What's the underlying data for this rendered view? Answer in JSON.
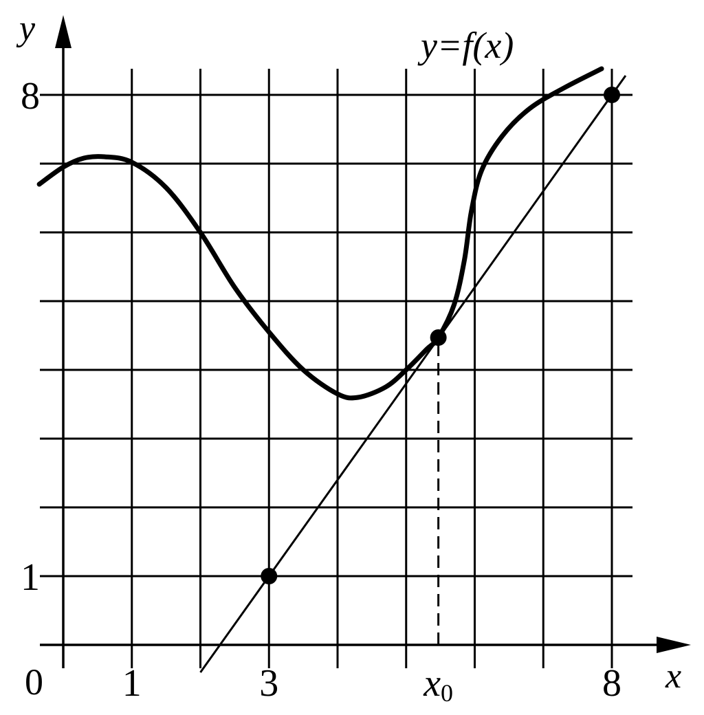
{
  "chart_data": {
    "type": "line",
    "xlabel": "x",
    "ylabel": "y",
    "curve_label": "y=f(x)",
    "origin_label": "0",
    "x_tick_labels": [
      {
        "value": 1,
        "label": "1"
      },
      {
        "value": 3,
        "label": "3"
      },
      {
        "value": 5.47,
        "label": "x0"
      },
      {
        "value": 8,
        "label": "8"
      }
    ],
    "y_tick_labels": [
      {
        "value": 1,
        "label": "1"
      },
      {
        "value": 8,
        "label": "8"
      }
    ],
    "xlim": [
      0,
      8
    ],
    "ylim": [
      0,
      8
    ],
    "grid": true,
    "series": [
      {
        "name": "y=f(x)",
        "style": "thick curve",
        "x": [
          -0.35,
          0,
          0.3,
          0.6,
          1,
          1.5,
          2,
          2.5,
          3,
          3.5,
          4,
          4.3,
          4.7,
          5,
          5.3,
          5.47,
          5.7,
          5.85,
          5.95,
          6.1,
          6.4,
          6.8,
          7.3,
          7.85
        ],
        "y": [
          6.7,
          6.95,
          7.08,
          7.1,
          7.02,
          6.65,
          6.0,
          5.2,
          4.55,
          4.0,
          3.65,
          3.6,
          3.75,
          4.0,
          4.3,
          4.47,
          4.95,
          5.6,
          6.3,
          6.9,
          7.4,
          7.8,
          8.1,
          8.38
        ]
      },
      {
        "style": "thin line",
        "x": [
          2,
          8.2
        ],
        "y": [
          -0.4,
          8.28
        ]
      }
    ],
    "points": [
      {
        "x": 3,
        "y": 1
      },
      {
        "x": 5.47,
        "y": 4.47
      },
      {
        "x": 8,
        "y": 8
      }
    ],
    "dashed_guide": {
      "x": 5.47,
      "from_y": 0,
      "to_y": 4.47
    }
  }
}
